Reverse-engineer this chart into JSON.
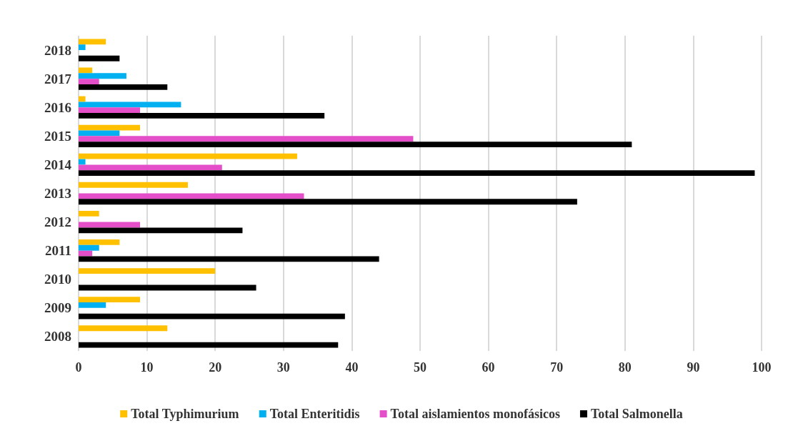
{
  "chart_data": {
    "type": "bar",
    "orientation": "horizontal",
    "categories": [
      "2018",
      "2017",
      "2016",
      "2015",
      "2014",
      "2013",
      "2012",
      "2011",
      "2010",
      "2009",
      "2008"
    ],
    "series": [
      {
        "name": "Total Typhimurium",
        "color": "#ffc000",
        "values": [
          4,
          2,
          1,
          9,
          32,
          16,
          3,
          6,
          20,
          9,
          13
        ]
      },
      {
        "name": "Total Enteritidis",
        "color": "#00b0f0",
        "values": [
          1,
          7,
          15,
          6,
          1,
          0,
          0,
          3,
          0,
          4,
          0
        ]
      },
      {
        "name": "Total aislamientos monofásicos",
        "color": "#e44fc9",
        "values": [
          0,
          3,
          9,
          49,
          21,
          33,
          9,
          2,
          0,
          0,
          0
        ]
      },
      {
        "name": "Total Salmonella",
        "color": "#000000",
        "values": [
          6,
          13,
          36,
          81,
          99,
          73,
          24,
          44,
          26,
          39,
          38
        ]
      }
    ],
    "xlim": [
      0,
      100
    ],
    "xticks": [
      0,
      10,
      20,
      30,
      40,
      50,
      60,
      70,
      80,
      90,
      100
    ],
    "grid": "x",
    "legend": "bottom"
  }
}
